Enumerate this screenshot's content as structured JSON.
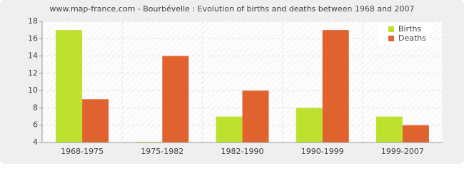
{
  "chart_data": {
    "type": "bar",
    "title": "www.map-france.com - Bourbévelle : Evolution of births and deaths between 1968 and 2007",
    "categories": [
      "1968-1975",
      "1975-1982",
      "1982-1990",
      "1990-1999",
      "1999-2007"
    ],
    "series": [
      {
        "name": "Births",
        "color": "#bde12e",
        "values": [
          17,
          4,
          7,
          8,
          7
        ]
      },
      {
        "name": "Deaths",
        "color": "#e0632f",
        "values": [
          9,
          14,
          10,
          17,
          6
        ]
      }
    ],
    "ylim": [
      4,
      18
    ],
    "yticks": [
      4,
      6,
      8,
      10,
      12,
      14,
      16,
      18
    ],
    "grid": true,
    "legend": "top-right"
  }
}
